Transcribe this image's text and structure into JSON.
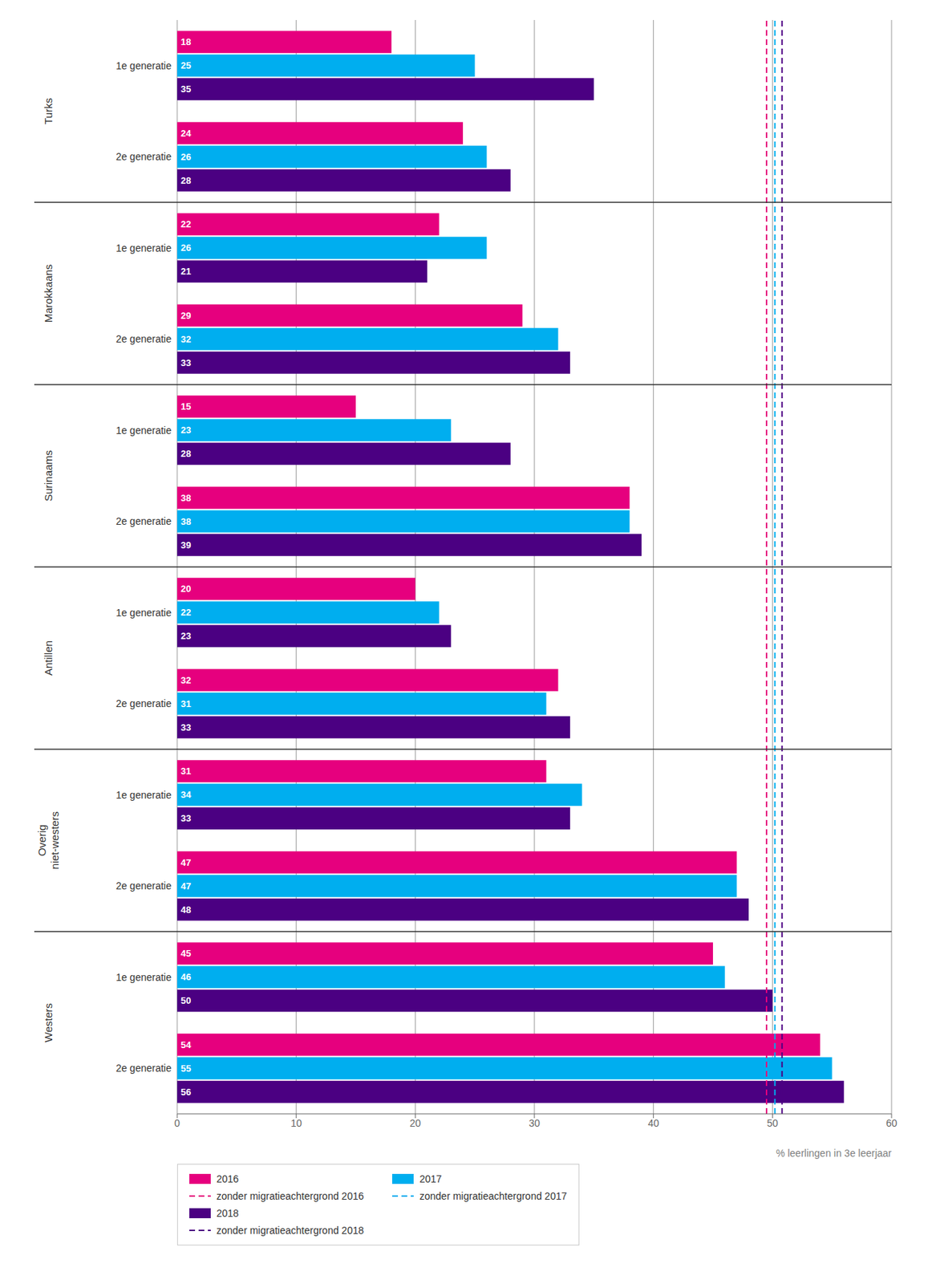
{
  "chart_data": {
    "type": "bar",
    "orientation": "horizontal",
    "xlabel": "% leerlingen in 3e leerjaar",
    "categories": [
      "1e generatie",
      "2e generatie",
      "1e generatie",
      "2e generatie",
      "1e generatie",
      "2e generatie",
      "1e generatie",
      "2e generatie",
      "1e generatie",
      "2e generatie",
      "1e generatie",
      "2e generatie"
    ],
    "category_groups": [
      "Turks",
      "Marokkaans",
      "Surinaams",
      "Antillen",
      "Overig\nniet-westers",
      "Westers"
    ],
    "series": [
      {
        "name": "2016",
        "color": "#E6007E",
        "values": [
          18,
          24,
          22,
          29,
          15,
          38,
          20,
          32,
          31,
          47,
          45,
          54
        ]
      },
      {
        "name": "2017",
        "color": "#00AEEF",
        "values": [
          25,
          26,
          26,
          32,
          23,
          38,
          22,
          31,
          34,
          47,
          46,
          55
        ]
      },
      {
        "name": "2018",
        "color": "#4B0082",
        "values": [
          35,
          28,
          21,
          33,
          28,
          39,
          23,
          33,
          33,
          48,
          50,
          56
        ]
      }
    ],
    "reference_lines": [
      {
        "name": "zonder migratieachtergrond 2016",
        "value": 49.5,
        "color": "#E6007E",
        "line_style": "dashed"
      },
      {
        "name": "zonder migratieachtergrond 2017",
        "value": 50.2,
        "color": "#00AEEF",
        "line_style": "dashed"
      },
      {
        "name": "zonder migratieachtergrond 2018",
        "value": 50.8,
        "color": "#4B0082",
        "line_style": "dashed"
      }
    ],
    "xlim": [
      0,
      60
    ],
    "xticks": [
      0,
      10,
      20,
      30,
      40,
      50,
      60
    ],
    "grid": true,
    "data_labels": true,
    "legend": "bottom"
  }
}
